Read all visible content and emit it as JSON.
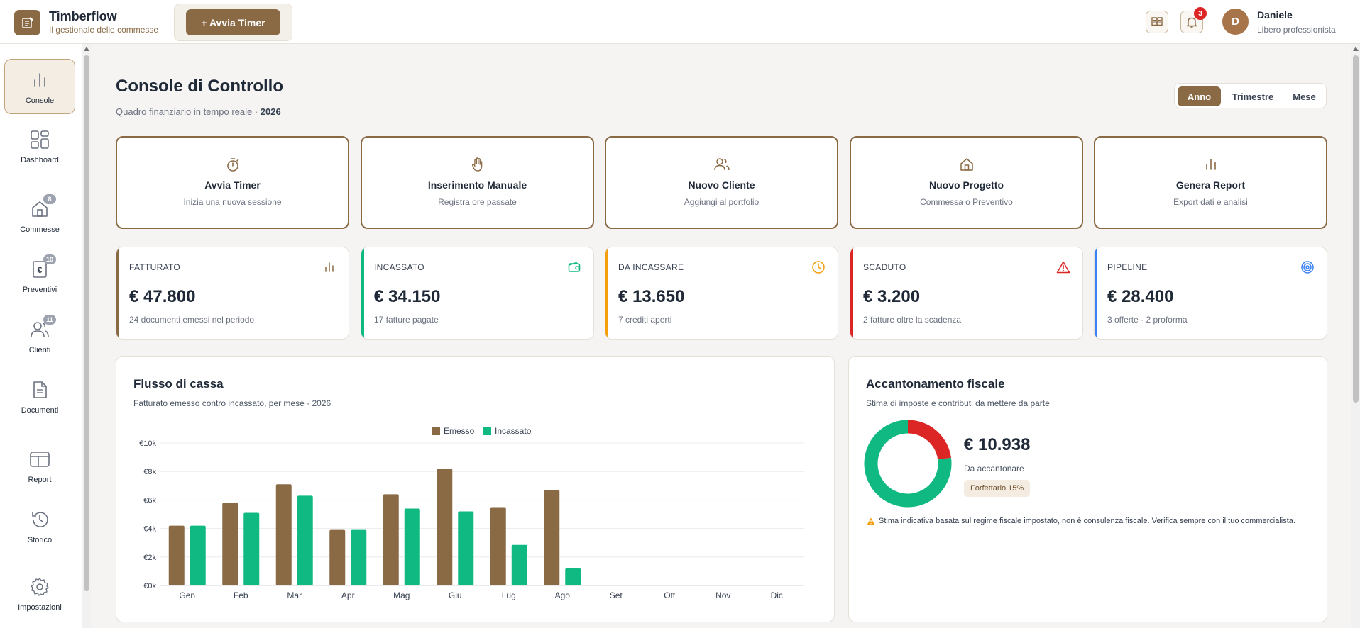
{
  "app": {
    "name": "Timberflow",
    "tagline": "Il gestionale delle commesse",
    "timer_button": "+ Avvia Timer",
    "notifications_count": "3",
    "user": {
      "initial": "D",
      "name": "Daniele",
      "role": "Libero professionista"
    }
  },
  "sidebar": {
    "items": [
      {
        "label": "Console",
        "icon": "chart-bars-icon",
        "active": true
      },
      {
        "label": "Dashboard",
        "icon": "grid-icon"
      },
      {
        "label": "Commesse",
        "icon": "house-icon",
        "badge": "8"
      },
      {
        "label": "Preventivi",
        "icon": "euro-doc-icon",
        "badge": "10"
      },
      {
        "label": "Clienti",
        "icon": "users-icon",
        "badge": "11"
      },
      {
        "label": "Documenti",
        "icon": "document-icon"
      },
      {
        "label": "Report",
        "icon": "layout-icon"
      },
      {
        "label": "Storico",
        "icon": "history-icon"
      },
      {
        "label": "Impostazioni",
        "icon": "gear-icon"
      }
    ]
  },
  "header": {
    "title": "Console di Controllo",
    "subtitle": "Quadro finanziario in tempo reale · ",
    "year": "2026",
    "periods": [
      "Anno",
      "Trimestre",
      "Mese"
    ],
    "active_period": "Anno"
  },
  "quick_actions": [
    {
      "title": "Avvia Timer",
      "subtitle": "Inizia una nuova sessione",
      "icon": "stopwatch-icon"
    },
    {
      "title": "Inserimento Manuale",
      "subtitle": "Registra ore passate",
      "icon": "hand-icon"
    },
    {
      "title": "Nuovo Cliente",
      "subtitle": "Aggiungi al portfolio",
      "icon": "users-icon"
    },
    {
      "title": "Nuovo Progetto",
      "subtitle": "Commessa o Preventivo",
      "icon": "house-icon"
    },
    {
      "title": "Genera Report",
      "subtitle": "Export dati e analisi",
      "icon": "chart-bars-icon"
    }
  ],
  "kpis": [
    {
      "label": "FATTURATO",
      "value": "€ 47.800",
      "sub": "24 documenti emessi nel periodo",
      "color": "#8a6a45",
      "icon": "chart-bars-icon"
    },
    {
      "label": "INCASSATO",
      "value": "€ 34.150",
      "sub": "17 fatture pagate",
      "color": "#10b981",
      "icon": "wallet-icon"
    },
    {
      "label": "DA INCASSARE",
      "value": "€ 13.650",
      "sub": "7 crediti aperti",
      "color": "#f59e0b",
      "icon": "clock-icon"
    },
    {
      "label": "SCADUTO",
      "value": "€ 3.200",
      "sub": "2 fatture oltre la scadenza",
      "color": "#dc2626",
      "icon": "warning-icon"
    },
    {
      "label": "PIPELINE",
      "value": "€ 28.400",
      "sub": "3 offerte · 2 proforma",
      "color": "#3b82f6",
      "icon": "target-icon"
    }
  ],
  "cashflow": {
    "title": "Flusso di cassa",
    "subtitle": "Fatturato emesso contro incassato, per mese · 2026"
  },
  "tax": {
    "title": "Accantonamento fiscale",
    "subtitle": "Stima di imposte e contributi da mettere da parte",
    "amount": "€ 10.938",
    "amount_label": "Da accantonare",
    "regime": "Forfettario 15%",
    "note": "Stima indicativa basata sul regime fiscale impostato, non è consulenza fiscale. Verifica sempre con il tuo commercialista.",
    "donut": {
      "accantonare_fraction": 0.229,
      "colors": {
        "rest": "#10b981",
        "tax": "#dc2626"
      }
    }
  },
  "chart_data": {
    "type": "bar",
    "categories": [
      "Gen",
      "Feb",
      "Mar",
      "Apr",
      "Mag",
      "Giu",
      "Lug",
      "Ago",
      "Set",
      "Ott",
      "Nov",
      "Dic"
    ],
    "series": [
      {
        "name": "Emesso",
        "color": "#8a6a45",
        "values": [
          4200,
          5800,
          7100,
          3900,
          6400,
          8200,
          5500,
          6700,
          null,
          null,
          null,
          null
        ]
      },
      {
        "name": "Incassato",
        "color": "#10b981",
        "values": [
          4200,
          5100,
          6300,
          3900,
          5400,
          5200,
          2850,
          1200,
          null,
          null,
          null,
          null
        ]
      }
    ],
    "yticks": [
      "€0k",
      "€2k",
      "€4k",
      "€6k",
      "€8k",
      "€10k"
    ],
    "ylim": [
      0,
      10000
    ],
    "legend": "top-center",
    "grid": true
  }
}
